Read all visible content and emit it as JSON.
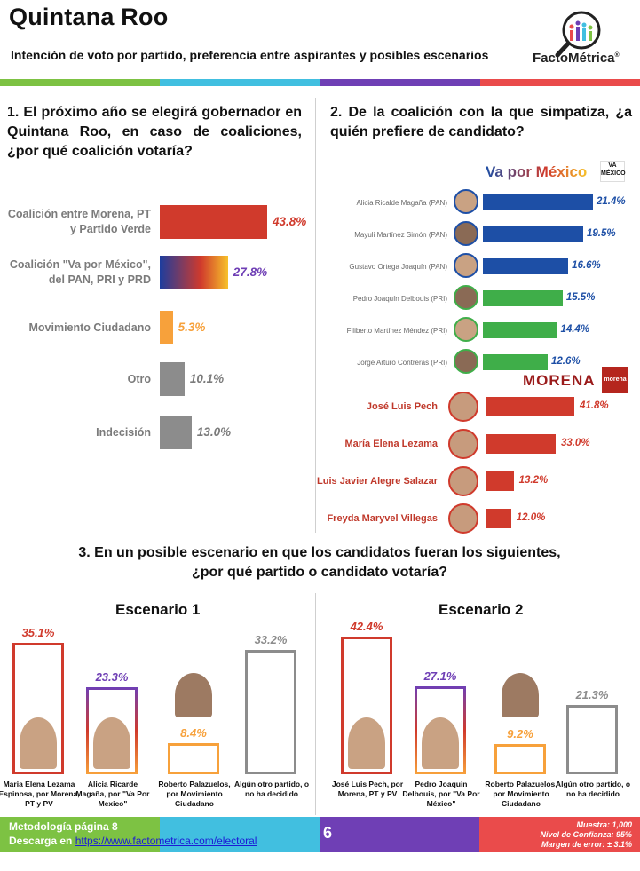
{
  "header": {
    "title": "Quintana Roo",
    "subtitle": "Intención de voto por partido, preferencia entre aspirantes y posibles escenarios",
    "logo_text": "FactoMétrica",
    "logo_reg": "®"
  },
  "colors": {
    "green": "#7dc243",
    "cyan": "#41bfe0",
    "purple": "#6f3fb5",
    "red": "#ea4b4b",
    "bar_red": "#d03a2c",
    "bar_orange": "#f7a13b",
    "bar_gray": "#8c8c8c",
    "bar_blue": "#1d4fa6",
    "bar_green": "#3fae49"
  },
  "questions": {
    "q1": "1. El próximo año se elegirá gobernador en Quintana Roo, en caso de coaliciones, ¿por qué coalición votaría?",
    "q2": "2. De la coalición con la que simpatiza, ¿a quién prefiere de candidato?",
    "q3_line1": "3. En un posible escenario en que los candidatos fueran los siguientes,",
    "q3_line2": "¿por qué partido o candidato votaría?"
  },
  "party_labels": {
    "vpm": "Va por México",
    "morena": "MORENA",
    "morena_logo": "morena",
    "vpm_logo": "VA MÉXICO"
  },
  "chart_data": [
    {
      "type": "bar",
      "orientation": "horizontal",
      "categories": [
        "Coalición entre Morena, PT y Partido Verde",
        "Coalición \"Va por México\", del PAN, PRI y PRD",
        "Movimiento Ciudadano",
        "Otro",
        "Indecisión"
      ],
      "values": [
        43.8,
        27.8,
        5.3,
        10.1,
        13.0
      ],
      "labels": [
        "43.8%",
        "27.8%",
        "5.3%",
        "10.1%",
        "13.0%"
      ],
      "label_colors": [
        "#d03a2c",
        "#6f3fb5",
        "#f7a13b",
        "#7b7b7b",
        "#7b7b7b"
      ],
      "xlim": [
        0,
        50
      ]
    },
    {
      "type": "bar",
      "orientation": "horizontal",
      "group": "Va por México",
      "categories": [
        "Alicia Ricalde Magaña (PAN)",
        "Mayuli Martínez Simón (PAN)",
        "Gustavo Ortega Joaquín (PAN)",
        "Pedro Joaquín Delbouis (PRI)",
        "Filiberto Martínez Méndez (PRI)",
        "Jorge Arturo Contreras (PRI)"
      ],
      "values": [
        21.4,
        19.5,
        16.6,
        15.5,
        14.4,
        12.6
      ],
      "labels": [
        "21.4%",
        "19.5%",
        "16.6%",
        "15.5%",
        "14.4%",
        "12.6%"
      ],
      "party": [
        "PAN",
        "PAN",
        "PAN",
        "PRI",
        "PRI",
        "PRI"
      ],
      "xlim": [
        0,
        25
      ]
    },
    {
      "type": "bar",
      "orientation": "horizontal",
      "group": "MORENA",
      "categories": [
        "José Luis Pech",
        "María Elena Lezama",
        "Luis Javier Alegre Salazar",
        "Freyda Maryvel Villegas"
      ],
      "values": [
        41.8,
        33.0,
        13.2,
        12.0
      ],
      "labels": [
        "41.8%",
        "33.0%",
        "13.2%",
        "12.0%"
      ],
      "xlim": [
        0,
        45
      ]
    },
    {
      "type": "bar",
      "title": "Escenario 1",
      "categories": [
        "Maria Elena Lezama Espinosa, por Morena, PT y PV",
        "Alicia Ricarde Magaña, por \"Va Por Mexico\"",
        "Roberto Palazuelos, por Movimiento Ciudadano",
        "Algún otro partido, o no ha decidido"
      ],
      "values": [
        35.1,
        23.3,
        8.4,
        33.2
      ],
      "labels": [
        "35.1%",
        "23.3%",
        "8.4%",
        "33.2%"
      ],
      "ylim": [
        0,
        40
      ]
    },
    {
      "type": "bar",
      "title": "Escenario 2",
      "categories": [
        "José Luis Pech, por Morena, PT y PV",
        "Pedro Joaquin Delbouis, por \"Va Por México\"",
        "Roberto Palazuelos, por Movimiento Ciudadano",
        "Algún otro partido, o no ha decidido"
      ],
      "values": [
        42.4,
        27.1,
        9.2,
        21.3
      ],
      "labels": [
        "42.4%",
        "27.1%",
        "9.2%",
        "21.3%"
      ],
      "ylim": [
        0,
        50
      ]
    }
  ],
  "footer": {
    "method": "Metodología página 8",
    "download": "Descarga en ",
    "link": "https://www.factometrica.com/electoral",
    "page": "6",
    "muestra": "Muestra: 1,000",
    "confianza": "Nivel de Confianza: 95%",
    "error": "Margen de error: ± 3.1%"
  }
}
